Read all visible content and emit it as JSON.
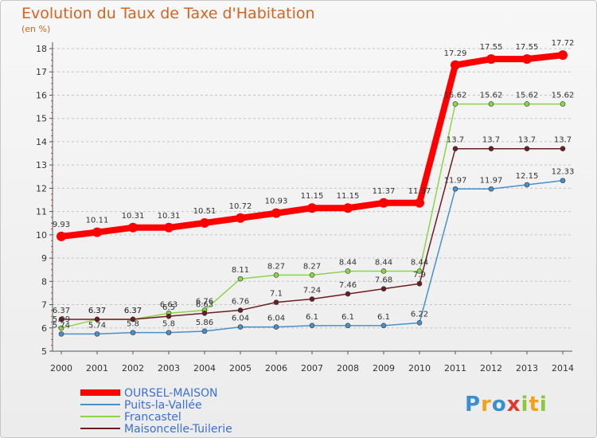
{
  "chart_data": {
    "type": "line",
    "title": "Evolution du Taux de Taxe d'Habitation",
    "ylabel": "(en %)",
    "xlabel": "",
    "ylim": [
      5,
      18
    ],
    "yticks": [
      "5",
      "6",
      "7",
      "8",
      "9",
      "10",
      "11",
      "12",
      "13",
      "14",
      "15",
      "16",
      "17",
      "18"
    ],
    "categories": [
      "2000",
      "2001",
      "2002",
      "2003",
      "2004",
      "2005",
      "2006",
      "2007",
      "2008",
      "2009",
      "2010",
      "2011",
      "2012",
      "2013",
      "2014"
    ],
    "grid": "horizontal dashed",
    "legend_position": "bottom-left",
    "series": [
      {
        "name": "OURSEL-MAISON",
        "color": "#ff0000",
        "width": "thick",
        "values": [
          9.93,
          10.11,
          10.31,
          10.31,
          10.51,
          10.72,
          10.93,
          11.15,
          11.15,
          11.37,
          11.37,
          17.29,
          17.55,
          17.55,
          17.72
        ],
        "labels": [
          "9.93",
          "10.11",
          "10.31",
          "10.31",
          "10.51",
          "10.72",
          "10.93",
          "11.15",
          "11.15",
          "11.37",
          "11.37",
          "17.29",
          "17.55",
          "17.55",
          "17.72"
        ]
      },
      {
        "name": "Puits-la-Vallée",
        "color": "#4a90c8",
        "values": [
          5.74,
          5.74,
          5.8,
          5.8,
          5.86,
          6.04,
          6.04,
          6.1,
          6.1,
          6.1,
          6.22,
          11.97,
          11.97,
          12.15,
          12.33
        ],
        "labels": [
          "5.74",
          "5.74",
          "5.8",
          "5.8",
          "5.86",
          "6.04",
          "6.04",
          "6.1",
          "6.1",
          "6.1",
          "6.22",
          "11.97",
          "11.97",
          "12.15",
          "12.33"
        ]
      },
      {
        "name": "Francastel",
        "color": "#8dd44a",
        "values": [
          5.99,
          6.37,
          6.37,
          6.63,
          6.76,
          8.11,
          8.27,
          8.27,
          8.44,
          8.44,
          8.44,
          15.62,
          15.62,
          15.62,
          15.62
        ],
        "labels": [
          "5.99",
          "6.37",
          "6.37",
          "6.63",
          "6.76",
          "8.11",
          "8.27",
          "8.27",
          "8.44",
          "8.44",
          "8.44",
          "15.62",
          "15.62",
          "15.62",
          "15.62"
        ]
      },
      {
        "name": "Maisoncelle-Tuilerie",
        "color": "#6b1e22",
        "values": [
          6.37,
          6.37,
          6.37,
          6.5,
          6.63,
          6.76,
          7.1,
          7.24,
          7.46,
          7.68,
          7.9,
          13.7,
          13.7,
          13.7,
          13.7
        ],
        "labels": [
          "6.37",
          "6.37",
          "6.37",
          "6.5",
          "6.63",
          "6.76",
          "7.1",
          "7.24",
          "7.46",
          "7.68",
          "7.9",
          "13.7",
          "13.7",
          "13.7",
          "13.7"
        ]
      }
    ]
  },
  "logo": {
    "letters": [
      "P",
      "r",
      "o",
      "x",
      "i",
      "t",
      "i"
    ],
    "colors": [
      "#3a8fd1",
      "#f0a31a",
      "#3a8fd1",
      "#e03a2e",
      "#8dc63f",
      "#f0a31a",
      "#8dc63f"
    ]
  }
}
